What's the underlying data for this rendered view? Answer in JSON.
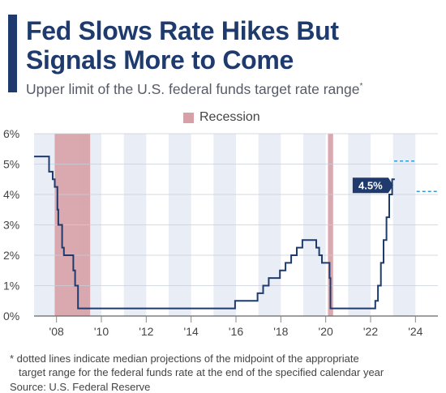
{
  "header": {
    "title": "Fed Slows Rate Hikes But Signals More to Come",
    "subtitle": "Upper limit of the U.S. federal funds target rate range",
    "subtitle_mark": "*"
  },
  "legend": {
    "recession_label": "Recession"
  },
  "footer": {
    "footnote_line1": "* dotted lines indicate median projections of the midpoint of the appropriate",
    "footnote_line2": "target range for the federal funds rate at the end of the specified calendar year",
    "source": "Source: U.S. Federal Reserve"
  },
  "colors": {
    "title": "#1f3b6e",
    "line": "#1f3b6e",
    "recession": "#d6a0a6",
    "band": "#e9edf5",
    "projection": "#2e9fd8",
    "callout": "#1f3b6e"
  },
  "chart_data": {
    "type": "line",
    "title": "Fed Slows Rate Hikes But Signals More to Come",
    "ylabel": "",
    "xlabel": "",
    "xlim": [
      2007,
      2025
    ],
    "ylim": [
      0,
      6
    ],
    "yticks": [
      "0%",
      "1%",
      "2%",
      "3%",
      "4%",
      "5%",
      "6%"
    ],
    "xtick_values": [
      2008,
      2010,
      2012,
      2014,
      2016,
      2018,
      2020,
      2022,
      2024
    ],
    "xticks": [
      "'08",
      "'10",
      "'12",
      "'14",
      "'16",
      "'18",
      "'20",
      "'22",
      "'24"
    ],
    "grid": true,
    "legend_position": "top-center",
    "recessions": [
      {
        "start": 2007.92,
        "end": 2009.5
      },
      {
        "start": 2020.1,
        "end": 2020.33
      }
    ],
    "series": [
      {
        "x": [
          2007.0,
          2007.67,
          2007.67,
          2007.83,
          2007.83,
          2007.92,
          2007.92,
          2008.04,
          2008.04,
          2008.08,
          2008.08,
          2008.25,
          2008.25,
          2008.33,
          2008.33,
          2008.75,
          2008.75,
          2008.83,
          2008.83,
          2008.96,
          2008.96,
          2015.96,
          2015.96,
          2016.96,
          2016.96,
          2017.21,
          2017.21,
          2017.46,
          2017.46,
          2017.96,
          2017.96,
          2018.21,
          2018.21,
          2018.46,
          2018.46,
          2018.71,
          2018.71,
          2018.96,
          2018.96,
          2019.58,
          2019.58,
          2019.71,
          2019.71,
          2019.83,
          2019.83,
          2020.17,
          2020.17,
          2020.21,
          2020.21,
          2022.21,
          2022.21,
          2022.33,
          2022.33,
          2022.46,
          2022.46,
          2022.58,
          2022.58,
          2022.71,
          2022.71,
          2022.83,
          2022.83,
          2022.96,
          2022.96,
          2023.08
        ],
        "values": [
          5.25,
          5.25,
          4.75,
          4.75,
          4.5,
          4.5,
          4.25,
          4.25,
          3.5,
          3.5,
          3.0,
          3.0,
          2.25,
          2.25,
          2.0,
          2.0,
          1.5,
          1.5,
          1.0,
          1.0,
          0.25,
          0.25,
          0.5,
          0.5,
          0.75,
          0.75,
          1.0,
          1.0,
          1.25,
          1.25,
          1.5,
          1.5,
          1.75,
          1.75,
          2.0,
          2.0,
          2.25,
          2.25,
          2.5,
          2.5,
          2.25,
          2.25,
          2.0,
          2.0,
          1.75,
          1.75,
          1.25,
          1.25,
          0.25,
          0.25,
          0.5,
          0.5,
          1.0,
          1.0,
          1.75,
          1.75,
          2.5,
          2.5,
          3.25,
          3.25,
          4.0,
          4.0,
          4.5,
          4.5
        ]
      }
    ],
    "projections": [
      {
        "year": 2023,
        "value": 5.1
      },
      {
        "year": 2024,
        "value": 4.1
      }
    ],
    "annotations": [
      {
        "x": 2023.08,
        "y": 4.5,
        "text": "4.5%"
      }
    ]
  }
}
